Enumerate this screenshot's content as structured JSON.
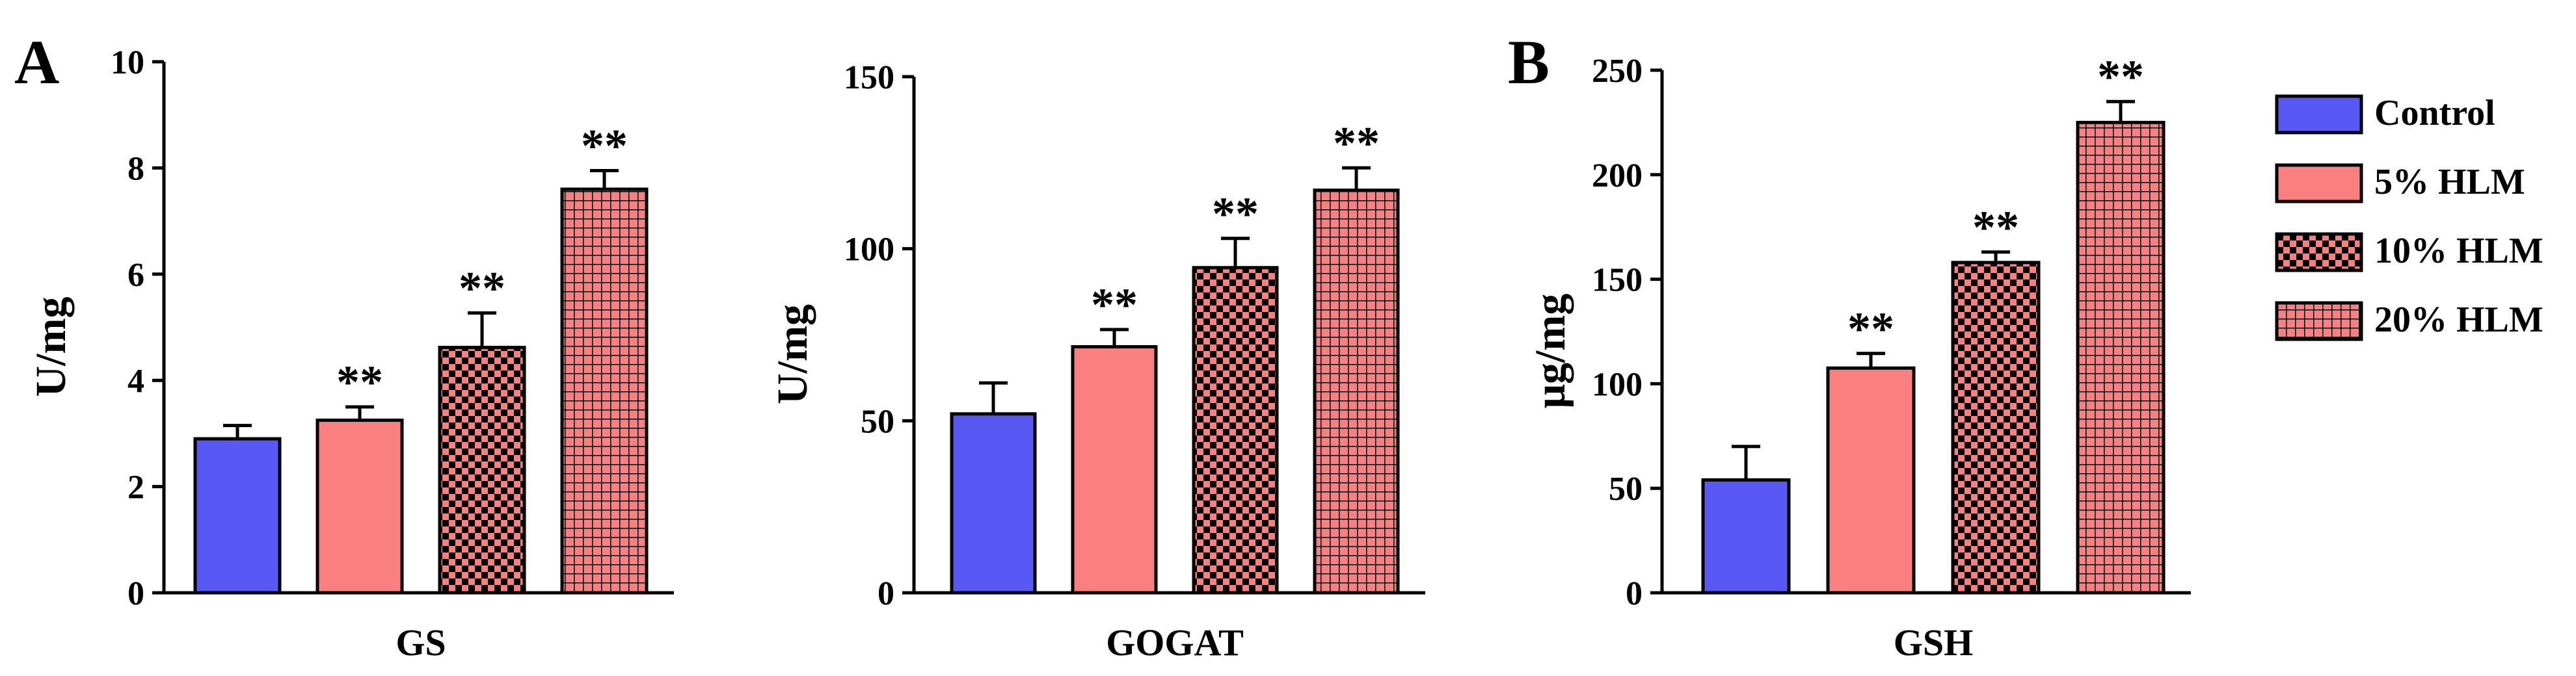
{
  "figure": {
    "panel_labels": [
      "A",
      "B"
    ],
    "significance_mark": "**"
  },
  "legend": {
    "entries": [
      {
        "label": "Control",
        "style": "solid",
        "color": "#5858f5"
      },
      {
        "label": "5% HLM",
        "style": "solid",
        "color": "#fa8080"
      },
      {
        "label": "10% HLM",
        "style": "checker",
        "color": "#fa8080"
      },
      {
        "label": "20% HLM",
        "style": "grid",
        "color": "#fa8080"
      }
    ]
  },
  "colors": {
    "control": "#5858f5",
    "hlm": "#fa8080",
    "pattern_ink": "#000000",
    "axis": "#000000"
  },
  "chart_data": [
    {
      "type": "bar",
      "panel": "A",
      "title": "",
      "xlabel": "GS",
      "ylabel": "U/mg",
      "ylim": [
        0,
        10
      ],
      "yticks": [
        0,
        2,
        4,
        6,
        8,
        10
      ],
      "categories": [
        "Control",
        "5% HLM",
        "10% HLM",
        "20% HLM"
      ],
      "values": [
        2.9,
        3.25,
        4.62,
        7.6
      ],
      "errors": [
        0.25,
        0.25,
        0.65,
        0.35
      ],
      "significance": [
        "",
        "**",
        "**",
        "**"
      ]
    },
    {
      "type": "bar",
      "panel": "A",
      "title": "",
      "xlabel": "GOGAT",
      "ylabel": "U/mg",
      "ylim": [
        0,
        150
      ],
      "yticks": [
        0,
        50,
        100,
        150
      ],
      "categories": [
        "Control",
        "5% HLM",
        "10% HLM",
        "20% HLM"
      ],
      "values": [
        52,
        71.5,
        94.5,
        117
      ],
      "errors": [
        9,
        5,
        8.5,
        6.5
      ],
      "significance": [
        "",
        "**",
        "**",
        "**"
      ]
    },
    {
      "type": "bar",
      "panel": "B",
      "title": "",
      "xlabel": "GSH",
      "ylabel": "μg/mg",
      "ylim": [
        0,
        250
      ],
      "yticks": [
        0,
        50,
        100,
        150,
        200,
        250
      ],
      "categories": [
        "Control",
        "5% HLM",
        "10% HLM",
        "20% HLM"
      ],
      "values": [
        54,
        107.5,
        158,
        225
      ],
      "errors": [
        16,
        7,
        5,
        10
      ],
      "significance": [
        "",
        "**",
        "**",
        "**"
      ]
    }
  ]
}
